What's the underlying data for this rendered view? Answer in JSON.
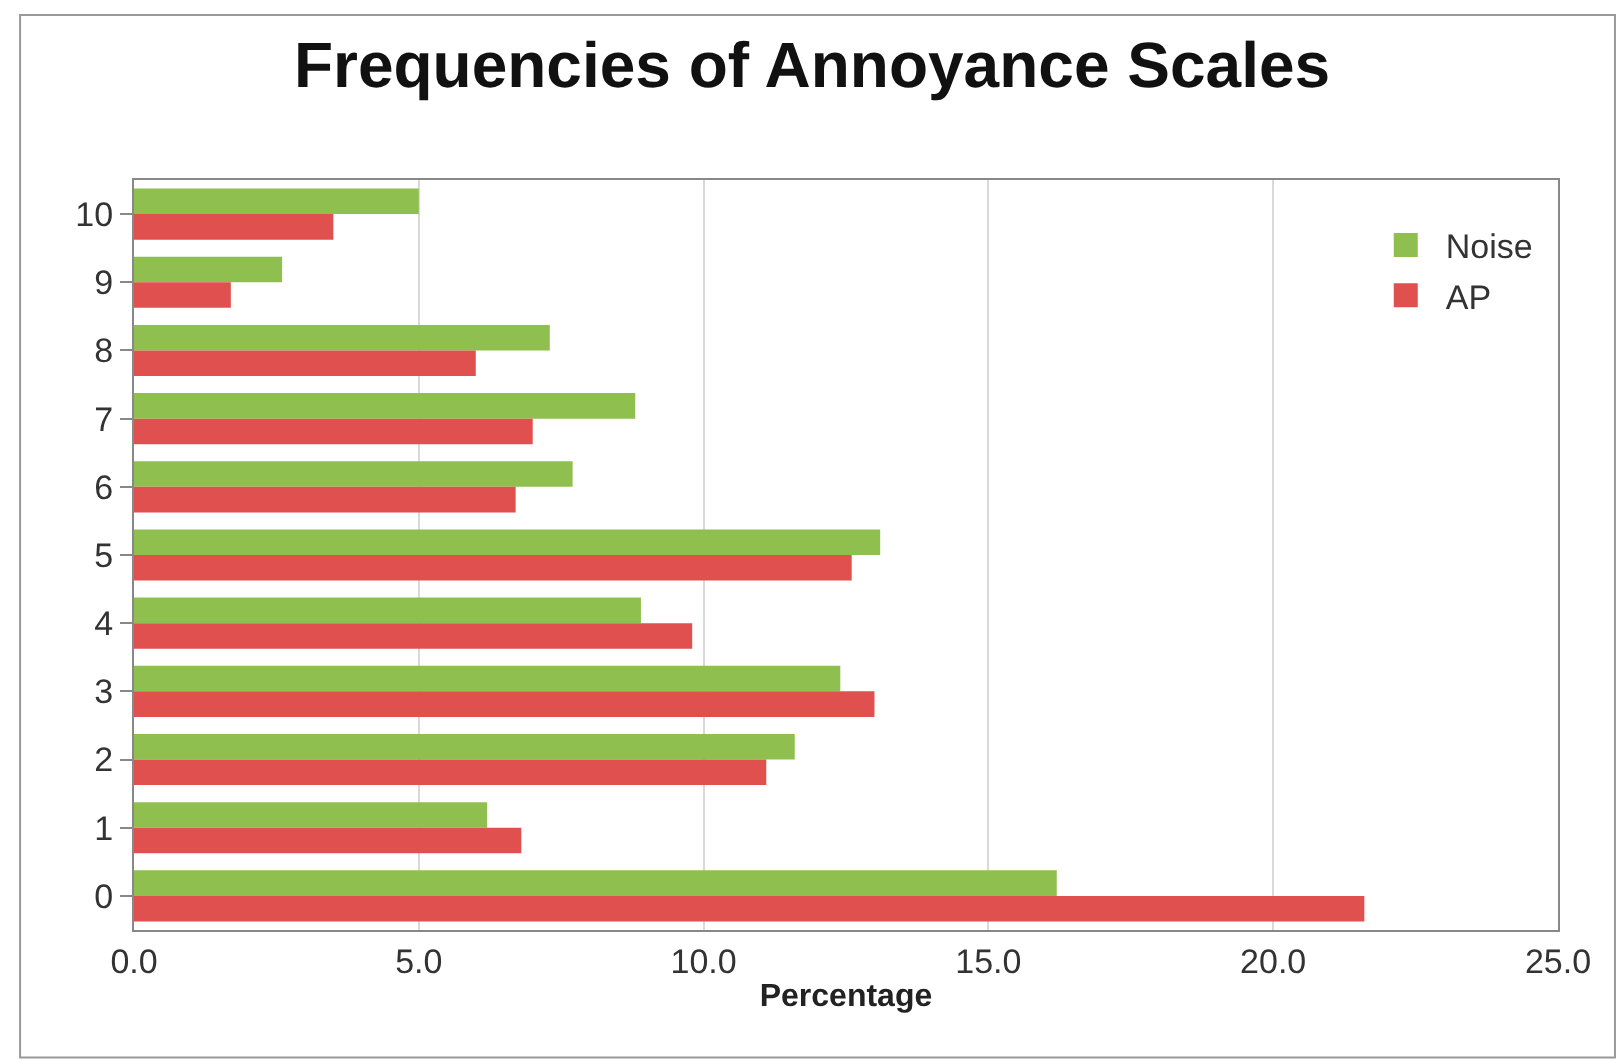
{
  "chart_data": {
    "type": "bar",
    "orientation": "horizontal",
    "title": "Frequencies of Annoyance Scales",
    "xlabel": "Percentage",
    "categories": [
      "10",
      "9",
      "8",
      "7",
      "6",
      "5",
      "4",
      "3",
      "2",
      "1",
      "0"
    ],
    "series": [
      {
        "name": "Noise",
        "color": "#8fc04f",
        "values": [
          5.0,
          2.6,
          7.3,
          8.8,
          7.7,
          13.1,
          8.9,
          12.4,
          11.6,
          6.2,
          16.2
        ]
      },
      {
        "name": "AP",
        "color": "#e0504f",
        "values": [
          3.5,
          1.7,
          6.0,
          7.0,
          6.7,
          12.6,
          9.8,
          13.0,
          11.1,
          6.8,
          21.6
        ]
      }
    ],
    "xlim": [
      0,
      25
    ],
    "xticks": [
      {
        "value": 0,
        "label": "0.0"
      },
      {
        "value": 5,
        "label": "5.0"
      },
      {
        "value": 10,
        "label": "10.0"
      },
      {
        "value": 15,
        "label": "15.0"
      },
      {
        "value": 20,
        "label": "20.0"
      },
      {
        "value": 25,
        "label": "25.0"
      }
    ],
    "grid": "x",
    "legend": "top right"
  }
}
